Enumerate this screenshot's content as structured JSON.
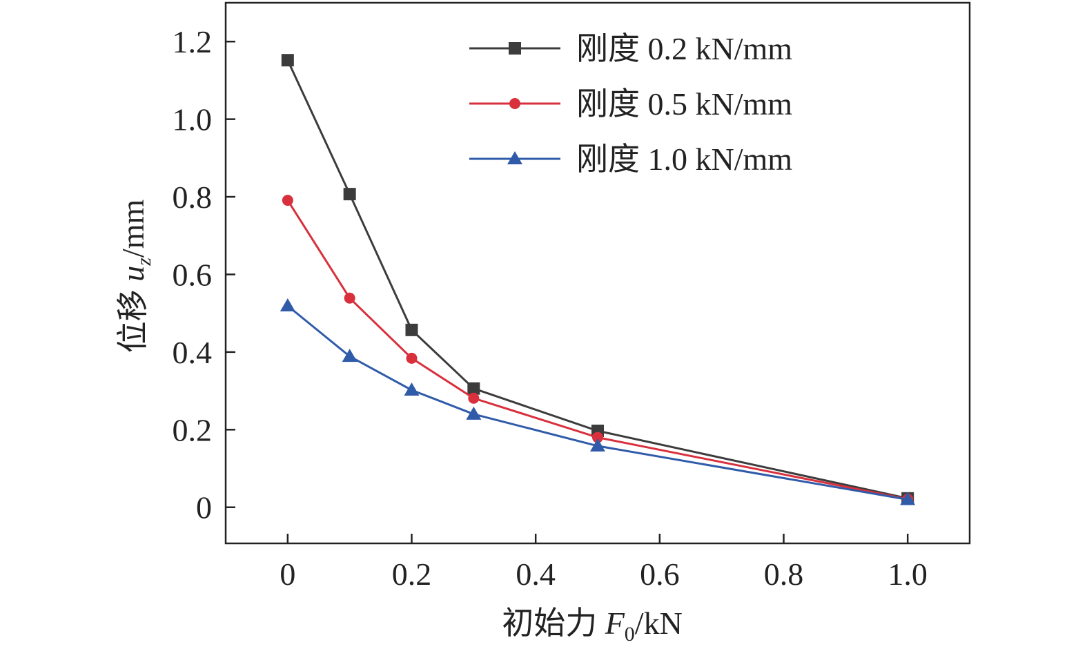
{
  "chart_data": {
    "type": "line",
    "title": "",
    "xlabel": {
      "prefix": "初始力 ",
      "var": "F",
      "sub": "0",
      "unit": "/kN"
    },
    "ylabel": {
      "prefix": "位移 ",
      "var": "u",
      "sub": "z",
      "unit": "/mm"
    },
    "xlim": [
      -0.1,
      1.1
    ],
    "ylim": [
      -0.093,
      1.3
    ],
    "xticks": [
      0,
      0.2,
      0.4,
      0.6,
      0.8,
      1.0
    ],
    "xtick_labels": [
      "0",
      "0.2",
      "0.4",
      "0.6",
      "0.8",
      "1.0"
    ],
    "yticks": [
      0,
      0.2,
      0.4,
      0.6,
      0.8,
      1.0,
      1.2
    ],
    "ytick_labels": [
      "0",
      "0.2",
      "0.4",
      "0.6",
      "0.8",
      "1.0",
      "1.2"
    ],
    "grid": false,
    "legend_position": "top-right",
    "x": [
      0,
      0.1,
      0.2,
      0.3,
      0.5,
      1.0
    ],
    "series": [
      {
        "name": "刚度 0.2 kN/mm",
        "color": "#3c3c3c",
        "marker": "square",
        "values": [
          1.152,
          0.807,
          0.457,
          0.306,
          0.197,
          0.023
        ]
      },
      {
        "name": "刚度 0.5 kN/mm",
        "color": "#d8303c",
        "marker": "circle",
        "values": [
          0.791,
          0.539,
          0.384,
          0.281,
          0.18,
          0.021
        ]
      },
      {
        "name": "刚度 1.0 kN/mm",
        "color": "#2f5ba9",
        "marker": "triangle",
        "values": [
          0.519,
          0.389,
          0.302,
          0.24,
          0.158,
          0.02
        ]
      }
    ]
  }
}
